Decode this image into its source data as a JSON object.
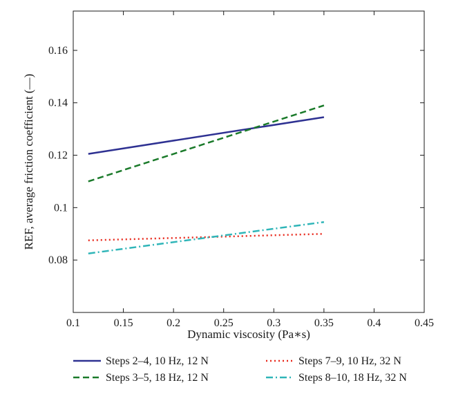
{
  "chart_data": {
    "type": "line",
    "xlabel": "Dynamic viscosity (Pa∗s)",
    "ylabel": "REF, average friction coefficient (—)",
    "xlim": [
      0.1,
      0.45
    ],
    "ylim": [
      0.06,
      0.175
    ],
    "xticks": [
      0.1,
      0.15,
      0.2,
      0.25,
      0.3,
      0.35,
      0.4,
      0.45
    ],
    "xtick_labels": [
      "0.1",
      "0.15",
      "0.2",
      "0.25",
      "0.3",
      "0.35",
      "0.4",
      "0.45"
    ],
    "yticks": [
      0.08,
      0.1,
      0.12,
      0.14,
      0.16
    ],
    "ytick_labels": [
      "0.08",
      "0.1",
      "0.12",
      "0.14",
      "0.16"
    ],
    "grid": false,
    "legend_position": "bottom",
    "series": [
      {
        "name": "Steps 2–4, 10 Hz, 12 N",
        "color": "#2e3192",
        "style": "solid",
        "x": [
          0.115,
          0.35
        ],
        "y": [
          0.1205,
          0.1345
        ]
      },
      {
        "name": "Steps 3–5, 18 Hz, 12 N",
        "color": "#1a7a2a",
        "style": "dashed",
        "x": [
          0.115,
          0.35
        ],
        "y": [
          0.11,
          0.139
        ]
      },
      {
        "name": "Steps 7–9, 10 Hz, 32 N",
        "color": "#e8281b",
        "style": "dotted",
        "x": [
          0.115,
          0.35
        ],
        "y": [
          0.0875,
          0.09
        ]
      },
      {
        "name": "Steps 8–10, 18 Hz, 32 N",
        "color": "#2fb5b8",
        "style": "dashdot",
        "x": [
          0.115,
          0.35
        ],
        "y": [
          0.0825,
          0.0945
        ]
      }
    ]
  }
}
